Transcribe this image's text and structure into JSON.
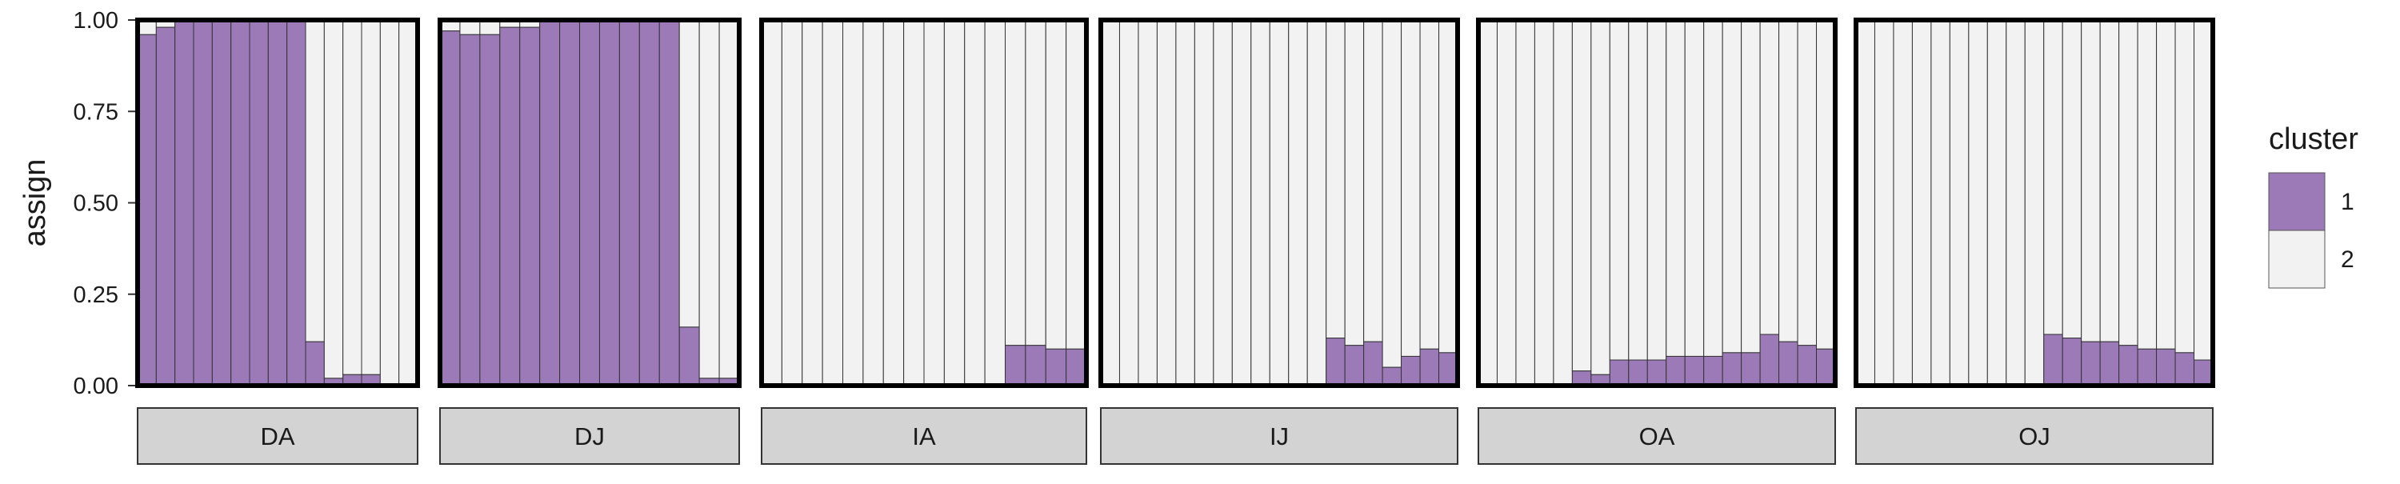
{
  "chart_data": {
    "type": "bar",
    "stacked": true,
    "facet_by": "population",
    "ylabel": "assign",
    "xlabel": "",
    "ylim": [
      0,
      1
    ],
    "yticks": [
      0.0,
      0.25,
      0.5,
      0.75,
      1.0
    ],
    "ytick_labels": [
      "0.00",
      "0.25",
      "0.50",
      "0.75",
      "1.00"
    ],
    "legend": {
      "title": "cluster",
      "position": "right",
      "entries": [
        {
          "label": "1",
          "color": "#9C7AB8"
        },
        {
          "label": "2",
          "color": "#F2F2F2"
        }
      ]
    },
    "series_colors": {
      "cluster1": "#9C7AB8",
      "cluster2": "#F2F2F2"
    },
    "note": "values are the cluster 1 proportion per individual; cluster 2 = 1 - value",
    "panels": [
      {
        "label": "DA",
        "cluster1": [
          0.96,
          0.98,
          1.0,
          1.0,
          1.0,
          1.0,
          1.0,
          1.0,
          1.0,
          0.12,
          0.02,
          0.03,
          0.03,
          0.0,
          0.0
        ]
      },
      {
        "label": "DJ",
        "cluster1": [
          0.97,
          0.96,
          0.96,
          0.98,
          0.98,
          1.0,
          1.0,
          1.0,
          1.0,
          1.0,
          1.0,
          1.0,
          0.16,
          0.02,
          0.02
        ]
      },
      {
        "label": "IA",
        "cluster1": [
          0.0,
          0.0,
          0.0,
          0.0,
          0.0,
          0.0,
          0.0,
          0.0,
          0.0,
          0.0,
          0.0,
          0.0,
          0.11,
          0.11,
          0.1,
          0.1
        ]
      },
      {
        "label": "IJ",
        "cluster1": [
          0.0,
          0.0,
          0.0,
          0.0,
          0.0,
          0.0,
          0.0,
          0.0,
          0.0,
          0.0,
          0.0,
          0.0,
          0.13,
          0.11,
          0.12,
          0.05,
          0.08,
          0.1,
          0.09
        ]
      },
      {
        "label": "OA",
        "cluster1": [
          0.0,
          0.0,
          0.0,
          0.0,
          0.0,
          0.04,
          0.03,
          0.07,
          0.07,
          0.07,
          0.08,
          0.08,
          0.08,
          0.09,
          0.09,
          0.14,
          0.12,
          0.11,
          0.1
        ]
      },
      {
        "label": "OJ",
        "cluster1": [
          0.0,
          0.0,
          0.0,
          0.0,
          0.0,
          0.0,
          0.0,
          0.0,
          0.0,
          0.0,
          0.14,
          0.13,
          0.12,
          0.12,
          0.11,
          0.1,
          0.1,
          0.09,
          0.07
        ]
      }
    ]
  }
}
